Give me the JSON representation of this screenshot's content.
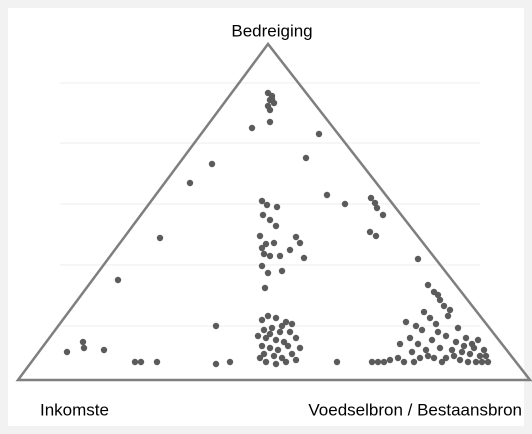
{
  "chart_data": {
    "type": "scatter",
    "labels": {
      "top": "Bedreiging",
      "left": "Inkomste",
      "right": "Voedselbron / Bestaansbron"
    },
    "color": "#5b5b5b",
    "xlim": [
      0,
      512
    ],
    "ylim": [
      0,
      336
    ],
    "x": [
      250,
      254,
      252,
      256,
      250,
      254,
      252,
      234,
      252,
      301,
      288,
      194,
      172,
      309,
      327,
      353,
      357,
      359,
      365,
      352,
      358,
      142,
      100,
      400,
      410,
      416,
      420,
      198,
      49,
      65,
      66,
      86,
      117,
      123,
      139,
      198,
      212,
      319,
      244,
      249,
      259,
      245,
      252,
      258,
      242,
      248,
      256,
      278,
      282,
      244,
      246,
      252,
      262,
      272,
      286,
      244,
      250,
      264,
      247,
      244,
      250,
      258,
      268,
      274,
      246,
      254,
      262,
      272,
      248,
      258,
      266,
      278,
      244,
      252,
      260,
      270,
      246,
      256,
      264,
      274,
      248,
      258,
      268,
      242,
      282,
      252,
      264,
      278,
      240,
      354,
      360,
      366,
      372,
      380,
      388,
      392,
      394,
      400,
      404,
      406,
      410,
      414,
      418,
      422,
      424,
      428,
      430,
      434,
      438,
      440,
      442,
      446,
      448,
      452,
      456,
      458,
      462,
      466,
      470,
      386,
      396,
      402,
      408,
      416,
      420,
      426,
      432,
      436,
      444,
      450,
      454,
      460,
      464,
      468,
      382,
      412,
      398,
      422,
      428
    ],
    "values": [
      287,
      284,
      280,
      277,
      274,
      281,
      270,
      252,
      258,
      246,
      222,
      216,
      197,
      185,
      176,
      182,
      177,
      172,
      165,
      148,
      144,
      142,
      100,
      121,
      95,
      88,
      85,
      54,
      28,
      38,
      32,
      30,
      18,
      18,
      18,
      16,
      18,
      18,
      179,
      175,
      173,
      165,
      160,
      154,
      144,
      136,
      137,
      143,
      137,
      132,
      126,
      124,
      124,
      130,
      122,
      114,
      107,
      109,
      92,
      60,
      64,
      62,
      58,
      56,
      50,
      52,
      48,
      48,
      42,
      40,
      38,
      42,
      34,
      32,
      30,
      34,
      26,
      24,
      22,
      26,
      18,
      16,
      18,
      22,
      32,
      46,
      54,
      20,
      44,
      18,
      18,
      18,
      20,
      22,
      58,
      42,
      28,
      36,
      50,
      68,
      24,
      40,
      56,
      32,
      18,
      44,
      64,
      30,
      38,
      52,
      20,
      34,
      42,
      26,
      32,
      18,
      24,
      30,
      18,
      18,
      18,
      22,
      30,
      22,
      48,
      74,
      70,
      24,
      28,
      18,
      36,
      40,
      18,
      24,
      36,
      62,
      54,
      80,
      22
    ]
  }
}
